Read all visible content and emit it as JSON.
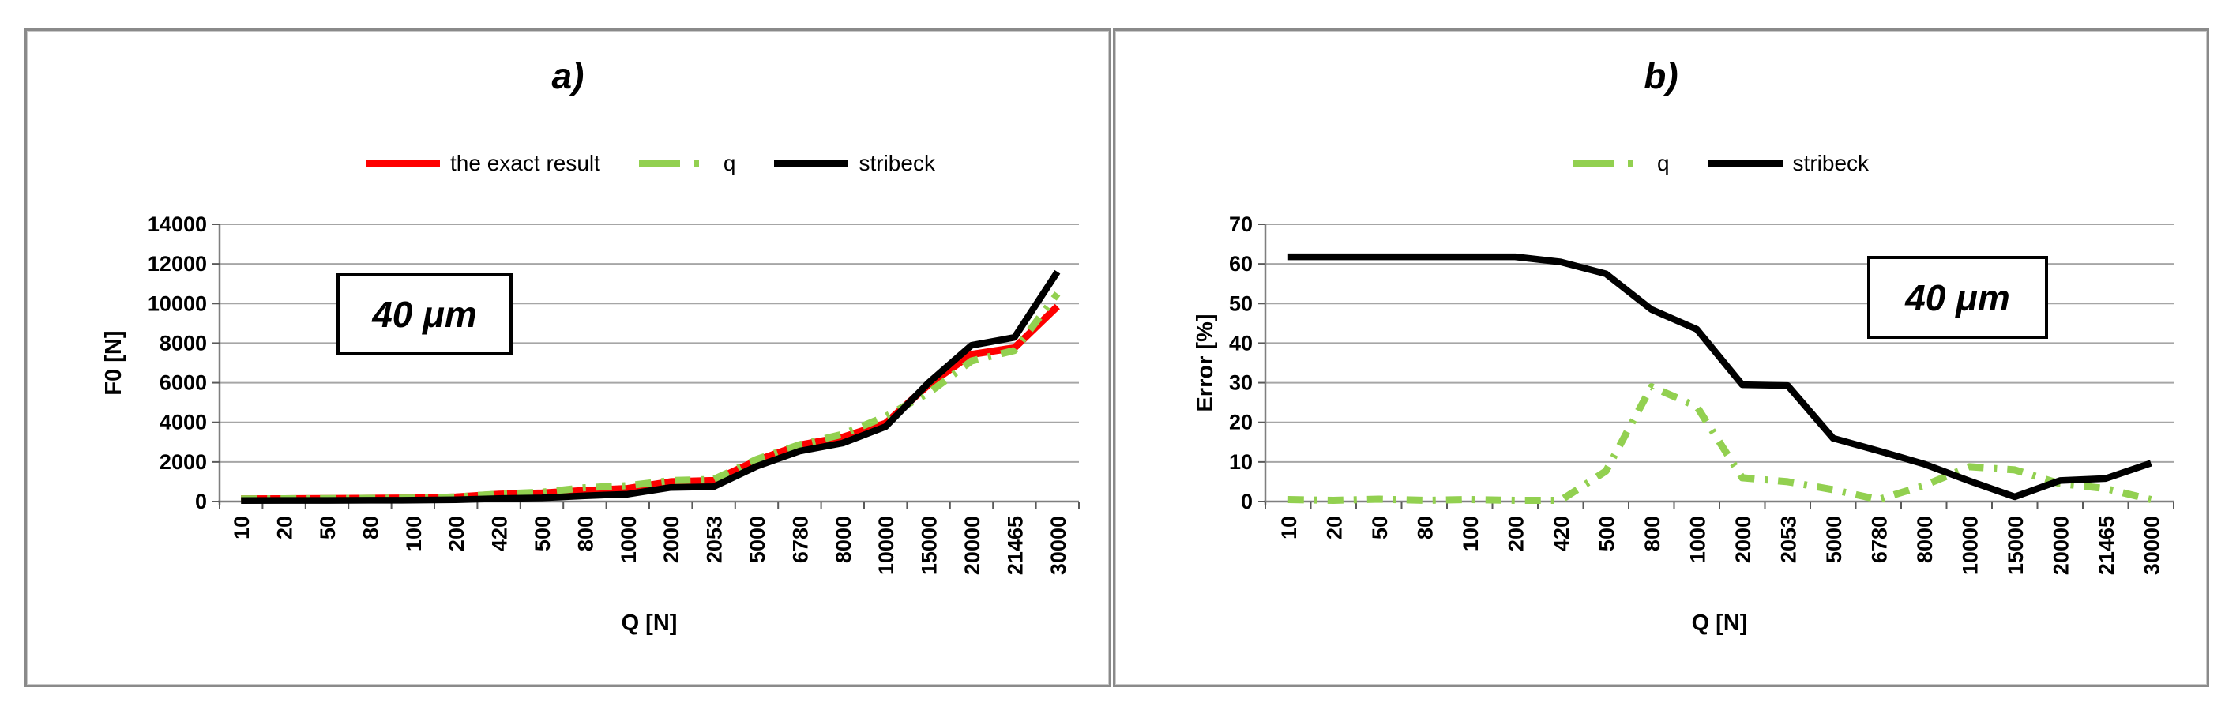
{
  "panels": [
    {
      "title": "a)",
      "annotation": "40 μm"
    },
    {
      "title": "b)",
      "annotation": "40 μm"
    }
  ],
  "colors": {
    "exact": "#fe0000",
    "q": "#92d050",
    "stribeck": "#000000",
    "gridline": "#a6a6a6",
    "axis": "#7f7f7f",
    "tick": "#595959",
    "panel_border": "#8a8a8a"
  },
  "chart_data": [
    {
      "type": "line",
      "title": "a)",
      "xlabel": "Q [N]",
      "ylabel": "F0 [N]",
      "ylim": [
        0,
        14000
      ],
      "y_ticks": [
        0,
        2000,
        4000,
        6000,
        8000,
        10000,
        12000,
        14000
      ],
      "grid": true,
      "legend_position": "top",
      "annotation": "40 μm",
      "categories": [
        "10",
        "20",
        "50",
        "80",
        "100",
        "200",
        "420",
        "500",
        "800",
        "1000",
        "2000",
        "2053",
        "5000",
        "6780",
        "8000",
        "10000",
        "15000",
        "20000",
        "21465",
        "30000"
      ],
      "series": [
        {
          "name": "the exact result",
          "color": "#fe0000",
          "style": "solid",
          "values": [
            135,
            140,
            150,
            165,
            175,
            230,
            370,
            430,
            560,
            660,
            1000,
            1060,
            2070,
            2850,
            3250,
            3950,
            5900,
            7430,
            7760,
            9850
          ]
        },
        {
          "name": "q",
          "color": "#92d050",
          "style": "dashdot",
          "values": [
            135,
            140,
            150,
            165,
            175,
            230,
            380,
            470,
            700,
            800,
            1060,
            1120,
            2130,
            2870,
            3400,
            4290,
            5480,
            7100,
            7630,
            10500
          ]
        },
        {
          "name": "stribeck",
          "color": "#000000",
          "style": "solid",
          "values": [
            52,
            54,
            57,
            63,
            67,
            88,
            150,
            185,
            290,
            370,
            710,
            750,
            1780,
            2550,
            2950,
            3780,
            6000,
            7890,
            8290,
            11600
          ]
        }
      ]
    },
    {
      "type": "line",
      "title": "b)",
      "xlabel": "Q [N]",
      "ylabel": "Error [%]",
      "ylim": [
        0,
        70
      ],
      "y_ticks": [
        0,
        10,
        20,
        30,
        40,
        50,
        60,
        70
      ],
      "grid": true,
      "legend_position": "top",
      "annotation": "40 μm",
      "categories": [
        "10",
        "20",
        "50",
        "80",
        "100",
        "200",
        "420",
        "500",
        "800",
        "1000",
        "2000",
        "2053",
        "5000",
        "6780",
        "8000",
        "10000",
        "15000",
        "20000",
        "21465",
        "30000"
      ],
      "series": [
        {
          "name": "q",
          "color": "#92d050",
          "style": "dashdot",
          "values": [
            0.5,
            0.3,
            0.6,
            0.3,
            0.5,
            0.3,
            0.3,
            7.7,
            29,
            24,
            6,
            5,
            3,
            0.5,
            4,
            8.8,
            8,
            4.5,
            3.3,
            0.5
          ]
        },
        {
          "name": "stribeck",
          "color": "#000000",
          "style": "solid",
          "values": [
            61.8,
            61.8,
            61.8,
            61.8,
            61.8,
            61.8,
            60.5,
            57.5,
            48.5,
            43.5,
            29.5,
            29.3,
            16,
            12.8,
            9.5,
            5.2,
            1.2,
            5.3,
            5.8,
            9.7
          ]
        }
      ]
    }
  ]
}
